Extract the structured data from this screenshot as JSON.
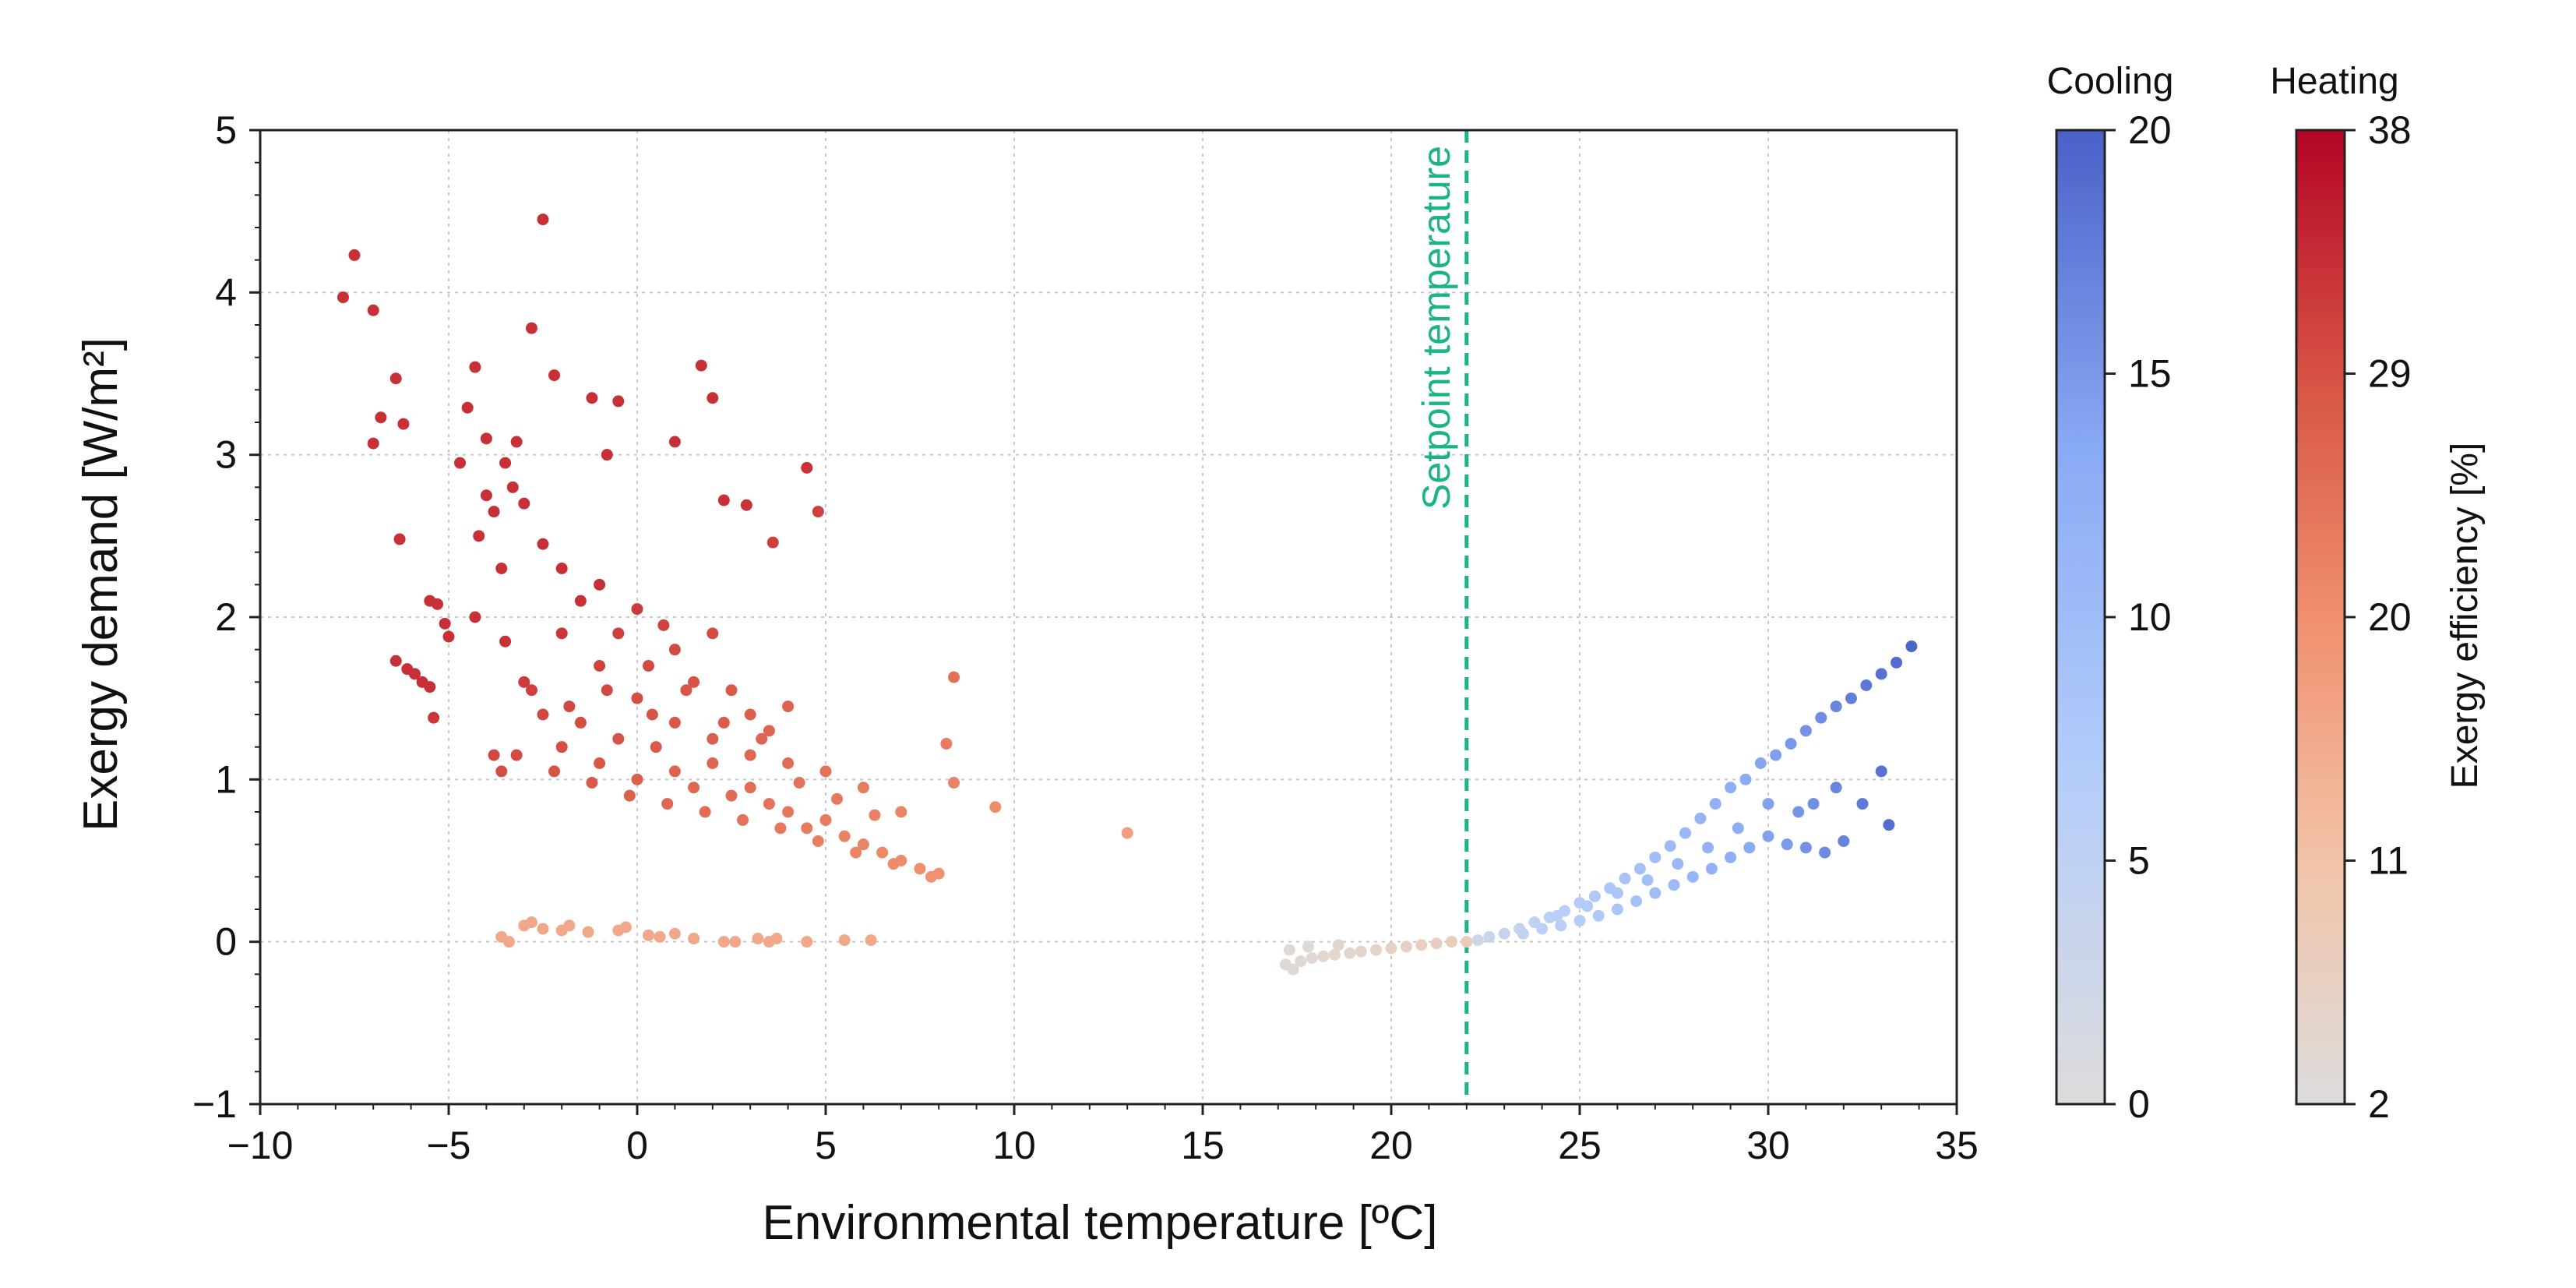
{
  "chart_data": {
    "type": "scatter",
    "title": "",
    "xlabel": "Environmental temperature [ºC]",
    "ylabel": "Exergy demand [W/m²]",
    "xlim": [
      -10,
      35
    ],
    "ylim": [
      -1,
      5
    ],
    "xticks": [
      "−10",
      "−5",
      "0",
      "5",
      "10",
      "15",
      "20",
      "25",
      "30",
      "35"
    ],
    "yticks": [
      "−1",
      "0",
      "1",
      "2",
      "3",
      "4",
      "5"
    ],
    "grid": true,
    "annotation": {
      "text": "Setpoint temperature",
      "x": 22,
      "color": "#1bb388",
      "style": "dashed"
    },
    "colorbars": [
      {
        "title": "Cooling",
        "ticks": [
          "0",
          "5",
          "10",
          "15",
          "20"
        ],
        "range": [
          0,
          20
        ],
        "colors": [
          "#dcdcdc",
          "#b5cdfa",
          "#8aabf5",
          "#4a61c8"
        ]
      },
      {
        "title": "Heating",
        "ticks": [
          "2",
          "11",
          "20",
          "29",
          "38"
        ],
        "range": [
          2,
          38
        ],
        "colors": [
          "#dcdcdc",
          "#f2c3a8",
          "#f08f6e",
          "#d65244",
          "#b40426"
        ]
      }
    ],
    "colorbar_label": "Exergy efficiency [%]",
    "series": [
      {
        "regime": "heating",
        "points": [
          [
            -7.8,
            3.97
          ],
          [
            -7.5,
            4.23
          ],
          [
            -7.0,
            3.89
          ],
          [
            -7.0,
            3.07
          ],
          [
            -6.8,
            3.23
          ],
          [
            -6.4,
            3.47
          ],
          [
            -6.3,
            2.48
          ],
          [
            -6.2,
            3.19
          ],
          [
            -6.4,
            1.73
          ],
          [
            -6.1,
            1.68
          ],
          [
            -5.9,
            1.65
          ],
          [
            -5.7,
            1.6
          ],
          [
            -5.5,
            1.57
          ],
          [
            -5.4,
            1.38
          ],
          [
            -5.5,
            2.1
          ],
          [
            -5.3,
            2.08
          ],
          [
            -5.1,
            1.96
          ],
          [
            -5.0,
            1.88
          ],
          [
            -4.7,
            2.95
          ],
          [
            -4.5,
            3.29
          ],
          [
            -4.3,
            3.54
          ],
          [
            -4.0,
            2.75
          ],
          [
            -4.3,
            2.0
          ],
          [
            -4.0,
            3.1
          ],
          [
            -3.8,
            2.65
          ],
          [
            -3.6,
            2.3
          ],
          [
            -3.5,
            2.95
          ],
          [
            -3.2,
            3.08
          ],
          [
            -3.3,
            2.8
          ],
          [
            -3.8,
            1.15
          ],
          [
            -3.6,
            1.05
          ],
          [
            -2.8,
            3.78
          ],
          [
            -2.5,
            4.45
          ],
          [
            -2.2,
            3.49
          ],
          [
            -1.2,
            3.35
          ],
          [
            -0.8,
            3.0
          ],
          [
            -0.5,
            3.33
          ],
          [
            1.0,
            3.08
          ],
          [
            1.7,
            3.55
          ],
          [
            2.0,
            3.35
          ],
          [
            2.3,
            2.72
          ],
          [
            2.9,
            2.69
          ],
          [
            3.6,
            2.46
          ],
          [
            4.5,
            2.92
          ],
          [
            4.8,
            2.65
          ],
          [
            8.4,
            1.63
          ],
          [
            8.2,
            1.22
          ],
          [
            8.4,
            0.98
          ],
          [
            9.5,
            0.83
          ],
          [
            13.0,
            0.67
          ],
          [
            -4.2,
            2.5
          ],
          [
            -3.0,
            2.7
          ],
          [
            -2.5,
            2.45
          ],
          [
            -2.0,
            2.3
          ],
          [
            -1.5,
            2.1
          ],
          [
            -1.0,
            2.2
          ],
          [
            -0.5,
            1.9
          ],
          [
            0.0,
            2.05
          ],
          [
            0.3,
            1.7
          ],
          [
            0.7,
            1.95
          ],
          [
            1.0,
            1.8
          ],
          [
            1.5,
            1.6
          ],
          [
            2.0,
            1.9
          ],
          [
            2.5,
            1.55
          ],
          [
            3.0,
            1.4
          ],
          [
            3.5,
            1.3
          ],
          [
            4.0,
            1.45
          ],
          [
            -3.0,
            1.6
          ],
          [
            -2.5,
            1.4
          ],
          [
            -2.0,
            1.2
          ],
          [
            -1.5,
            1.35
          ],
          [
            -1.0,
            1.1
          ],
          [
            -0.5,
            1.25
          ],
          [
            0.0,
            1.0
          ],
          [
            0.5,
            1.2
          ],
          [
            1.0,
            1.05
          ],
          [
            1.5,
            0.95
          ],
          [
            2.0,
            1.1
          ],
          [
            2.5,
            0.9
          ],
          [
            3.0,
            0.95
          ],
          [
            3.5,
            0.85
          ],
          [
            4.0,
            0.8
          ],
          [
            4.5,
            0.7
          ],
          [
            5.0,
            0.75
          ],
          [
            5.5,
            0.65
          ],
          [
            6.0,
            0.6
          ],
          [
            6.5,
            0.55
          ],
          [
            7.0,
            0.5
          ],
          [
            7.5,
            0.45
          ],
          [
            8.0,
            0.42
          ],
          [
            -2.0,
            1.9
          ],
          [
            -1.0,
            1.7
          ],
          [
            0.0,
            1.5
          ],
          [
            1.0,
            1.35
          ],
          [
            2.0,
            1.25
          ],
          [
            3.0,
            1.15
          ],
          [
            4.0,
            1.1
          ],
          [
            5.0,
            1.05
          ],
          [
            6.0,
            0.95
          ],
          [
            7.0,
            0.8
          ],
          [
            -3.5,
            1.85
          ],
          [
            -2.8,
            1.55
          ],
          [
            -1.8,
            1.45
          ],
          [
            -0.8,
            1.55
          ],
          [
            0.4,
            1.4
          ],
          [
            1.3,
            1.55
          ],
          [
            2.3,
            1.35
          ],
          [
            3.3,
            1.25
          ],
          [
            4.3,
            0.98
          ],
          [
            5.3,
            0.88
          ],
          [
            6.3,
            0.78
          ],
          [
            -3.2,
            1.15
          ],
          [
            -2.2,
            1.05
          ],
          [
            -1.2,
            0.98
          ],
          [
            -0.2,
            0.9
          ],
          [
            0.8,
            0.85
          ],
          [
            1.8,
            0.8
          ],
          [
            2.8,
            0.75
          ],
          [
            3.8,
            0.7
          ],
          [
            4.8,
            0.62
          ],
          [
            5.8,
            0.55
          ],
          [
            6.8,
            0.48
          ],
          [
            7.8,
            0.4
          ]
        ]
      },
      {
        "regime": "heating-low",
        "points": [
          [
            -3.6,
            0.03
          ],
          [
            -3.4,
            0.0
          ],
          [
            -3.0,
            0.1
          ],
          [
            -2.8,
            0.12
          ],
          [
            -2.5,
            0.08
          ],
          [
            -2.0,
            0.07
          ],
          [
            -1.8,
            0.1
          ],
          [
            -1.3,
            0.06
          ],
          [
            -0.5,
            0.07
          ],
          [
            -0.3,
            0.09
          ],
          [
            0.3,
            0.04
          ],
          [
            0.6,
            0.03
          ],
          [
            1.0,
            0.05
          ],
          [
            1.5,
            0.02
          ],
          [
            2.3,
            0.0
          ],
          [
            2.6,
            0.0
          ],
          [
            3.2,
            0.02
          ],
          [
            3.5,
            0.0
          ],
          [
            3.7,
            0.02
          ],
          [
            4.5,
            0.0
          ],
          [
            5.5,
            0.01
          ],
          [
            6.2,
            0.01
          ]
        ]
      },
      {
        "regime": "transition",
        "points": [
          [
            17.2,
            -0.14
          ],
          [
            17.4,
            -0.17
          ],
          [
            17.6,
            -0.12
          ],
          [
            17.9,
            -0.1
          ],
          [
            18.2,
            -0.09
          ],
          [
            18.5,
            -0.08
          ],
          [
            18.9,
            -0.07
          ],
          [
            19.2,
            -0.06
          ],
          [
            19.6,
            -0.05
          ],
          [
            20.0,
            -0.04
          ],
          [
            20.4,
            -0.03
          ],
          [
            20.8,
            -0.02
          ],
          [
            21.2,
            -0.01
          ],
          [
            21.6,
            0.0
          ],
          [
            22.0,
            0.0
          ],
          [
            17.3,
            -0.05
          ],
          [
            17.8,
            -0.03
          ],
          [
            18.6,
            -0.02
          ]
        ]
      },
      {
        "regime": "cooling",
        "points": [
          [
            22.3,
            0.01
          ],
          [
            22.6,
            0.03
          ],
          [
            23.0,
            0.05
          ],
          [
            23.4,
            0.08
          ],
          [
            23.8,
            0.12
          ],
          [
            24.2,
            0.15
          ],
          [
            24.6,
            0.19
          ],
          [
            25.0,
            0.24
          ],
          [
            25.4,
            0.28
          ],
          [
            25.8,
            0.33
          ],
          [
            26.2,
            0.39
          ],
          [
            26.6,
            0.45
          ],
          [
            27.0,
            0.52
          ],
          [
            27.4,
            0.59
          ],
          [
            27.8,
            0.67
          ],
          [
            28.2,
            0.76
          ],
          [
            28.6,
            0.85
          ],
          [
            29.0,
            0.95
          ],
          [
            29.4,
            1.0
          ],
          [
            29.8,
            1.1
          ],
          [
            30.2,
            1.15
          ],
          [
            30.6,
            1.22
          ],
          [
            31.0,
            1.3
          ],
          [
            31.4,
            1.38
          ],
          [
            31.8,
            1.45
          ],
          [
            32.2,
            1.5
          ],
          [
            32.6,
            1.58
          ],
          [
            33.0,
            1.65
          ],
          [
            33.4,
            1.72
          ],
          [
            33.8,
            1.82
          ],
          [
            23.5,
            0.05
          ],
          [
            24.0,
            0.08
          ],
          [
            24.5,
            0.1
          ],
          [
            25.0,
            0.13
          ],
          [
            25.5,
            0.16
          ],
          [
            26.0,
            0.2
          ],
          [
            26.5,
            0.25
          ],
          [
            27.0,
            0.3
          ],
          [
            27.5,
            0.35
          ],
          [
            28.0,
            0.4
          ],
          [
            28.5,
            0.45
          ],
          [
            29.0,
            0.52
          ],
          [
            29.5,
            0.58
          ],
          [
            30.0,
            0.65
          ],
          [
            30.5,
            0.6
          ],
          [
            31.0,
            0.58
          ],
          [
            31.5,
            0.55
          ],
          [
            32.0,
            0.62
          ],
          [
            32.5,
            0.85
          ],
          [
            33.0,
            1.05
          ],
          [
            33.2,
            0.72
          ],
          [
            31.2,
            0.85
          ],
          [
            31.8,
            0.95
          ],
          [
            30.8,
            0.8
          ],
          [
            30.0,
            0.85
          ],
          [
            29.2,
            0.7
          ],
          [
            28.4,
            0.58
          ],
          [
            27.6,
            0.48
          ],
          [
            26.8,
            0.38
          ],
          [
            26.0,
            0.3
          ],
          [
            25.2,
            0.22
          ],
          [
            24.4,
            0.16
          ]
        ]
      }
    ]
  }
}
